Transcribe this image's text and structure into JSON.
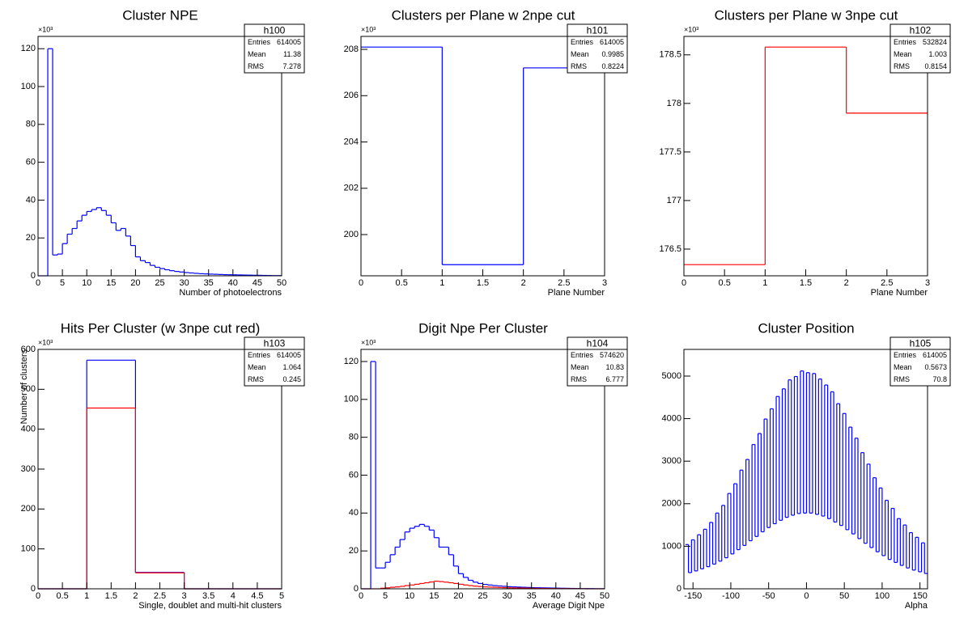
{
  "chart_data": [
    {
      "type": "histogram",
      "title": "Cluster NPE",
      "xlabel": "Number of photoelectrons",
      "y_multiplier": "×10³",
      "bins": [
        0,
        1,
        2,
        3,
        4,
        5,
        6,
        7,
        8,
        9,
        10,
        11,
        12,
        13,
        14,
        15,
        16,
        17,
        18,
        19,
        20,
        21,
        22,
        23,
        24,
        25,
        26,
        27,
        28,
        29,
        30,
        31,
        32,
        33,
        34,
        35,
        36,
        37,
        38,
        39,
        40,
        41,
        42,
        43,
        44,
        45,
        46,
        47,
        48,
        49,
        50
      ],
      "series": [
        {
          "color": "#0000ff",
          "values": [
            0,
            0,
            120,
            11,
            11.5,
            17,
            22,
            25,
            29,
            32,
            34,
            35,
            36,
            34.5,
            32,
            28,
            24,
            25,
            21,
            16,
            10,
            8,
            7,
            5.5,
            4.5,
            3.8,
            3.2,
            2.7,
            2.3,
            2,
            1.7,
            1.5,
            1.3,
            1.1,
            1,
            0.9,
            0.8,
            0.7,
            0.6,
            0.55,
            0.5,
            0.45,
            0.4,
            0.35,
            0.3,
            0.25,
            0.2,
            0.15,
            0.1,
            0.1
          ]
        }
      ],
      "xlim": [
        0,
        50
      ],
      "ylim": [
        0,
        126.5
      ],
      "xticks": [
        0,
        5,
        10,
        15,
        20,
        25,
        30,
        35,
        40,
        45,
        50
      ],
      "yticks": [
        0,
        20,
        40,
        60,
        80,
        100,
        120
      ],
      "stats": {
        "name": "h100",
        "rows": [
          {
            "label": "Entries",
            "value": 614005
          },
          {
            "label": "Mean",
            "value": 11.38
          },
          {
            "label": "RMS",
            "value": 7.278
          }
        ]
      }
    },
    {
      "type": "histogram",
      "title": "Clusters per Plane w 2npe cut",
      "xlabel": "Plane Number",
      "y_multiplier": "×10³",
      "bins": [
        0,
        1,
        2,
        3
      ],
      "series": [
        {
          "color": "#0000ff",
          "values": [
            208.1,
            198.7,
            207.2
          ]
        }
      ],
      "xlim": [
        0,
        3
      ],
      "ylim": [
        198.22,
        208.56
      ],
      "xticks": [
        0,
        0.5,
        1,
        1.5,
        2,
        2.5,
        3
      ],
      "yticks": [
        200,
        202,
        204,
        206,
        208
      ],
      "stats": {
        "name": "h101",
        "rows": [
          {
            "label": "Entries",
            "value": 614005
          },
          {
            "label": "Mean",
            "value": 0.9985
          },
          {
            "label": "RMS",
            "value": 0.8224
          }
        ]
      }
    },
    {
      "type": "histogram",
      "title": "Clusters per Plane w 3npe cut",
      "xlabel": "Plane Number",
      "y_multiplier": "×10³",
      "bins": [
        0,
        1,
        2,
        3
      ],
      "series": [
        {
          "color": "#ff0000",
          "values": [
            176.34,
            178.58,
            177.9
          ]
        }
      ],
      "xlim": [
        0,
        3
      ],
      "ylim": [
        176.225,
        178.69
      ],
      "xticks": [
        0,
        0.5,
        1,
        1.5,
        2,
        2.5,
        3
      ],
      "yticks": [
        176.5,
        177,
        177.5,
        178,
        178.5
      ],
      "stats": {
        "name": "h102",
        "rows": [
          {
            "label": "Entries",
            "value": 532824
          },
          {
            "label": "Mean",
            "value": 1.003
          },
          {
            "label": "RMS",
            "value": 0.8154
          }
        ]
      }
    },
    {
      "type": "histogram",
      "title": "Hits Per Cluster (w 3npe cut red)",
      "xlabel": "Single, doublet and multi-hit clusters",
      "ylabel": "Number of clusters",
      "y_multiplier": "×10³",
      "bins": [
        0,
        1,
        2,
        3,
        4,
        5
      ],
      "series": [
        {
          "color": "#0000ff",
          "values": [
            0,
            573,
            41,
            0,
            0
          ]
        },
        {
          "color": "#ff0000",
          "values": [
            0,
            453,
            40,
            0,
            0
          ]
        }
      ],
      "xlim": [
        0,
        5
      ],
      "ylim": [
        0,
        600
      ],
      "xticks": [
        0,
        0.5,
        1,
        1.5,
        2,
        2.5,
        3,
        3.5,
        4,
        4.5,
        5
      ],
      "yticks": [
        0,
        100,
        200,
        300,
        400,
        500,
        600
      ],
      "stats": {
        "name": "h103",
        "rows": [
          {
            "label": "Entries",
            "value": 614005
          },
          {
            "label": "Mean",
            "value": 1.064
          },
          {
            "label": "RMS",
            "value": 0.245
          }
        ]
      }
    },
    {
      "type": "histogram",
      "title": "Digit Npe Per Cluster",
      "xlabel": "Average Digit Npe",
      "y_multiplier": "×10³",
      "bins": [
        0,
        1,
        2,
        3,
        4,
        5,
        6,
        7,
        8,
        9,
        10,
        11,
        12,
        13,
        14,
        15,
        16,
        17,
        18,
        19,
        20,
        21,
        22,
        23,
        24,
        25,
        26,
        27,
        28,
        29,
        30,
        31,
        32,
        33,
        34,
        35,
        36,
        37,
        38,
        39,
        40,
        41,
        42,
        43,
        44,
        45,
        46,
        47,
        48,
        49,
        50
      ],
      "series": [
        {
          "color": "#0000ff",
          "values": [
            0,
            0,
            120,
            11,
            11,
            14,
            18,
            22,
            26,
            30,
            32,
            33,
            34,
            33,
            31,
            27,
            22,
            22,
            18,
            12,
            8,
            6,
            4.5,
            3.5,
            2.8,
            2.3,
            2,
            1.7,
            1.5,
            1.3,
            1.1,
            1,
            0.9,
            0.8,
            0.7,
            0.6,
            0.55,
            0.5,
            0.45,
            0.4,
            0.35,
            0.3,
            0.25,
            0.2,
            0.15,
            0.1,
            0.1,
            0.1,
            0.05,
            0.05
          ]
        },
        {
          "color": "#ff0000",
          "values": [
            0,
            0,
            0,
            0,
            0.3,
            0.5,
            0.8,
            1,
            1.3,
            1.7,
            2,
            2.4,
            2.8,
            3.2,
            3.6,
            4,
            3.8,
            3.5,
            3.2,
            2.8,
            2.4,
            2,
            1.7,
            1.4,
            1.2,
            1,
            0.9,
            0.8,
            0.7,
            0.6,
            0.5,
            0.45,
            0.4,
            0.35,
            0.3,
            0.25,
            0.2,
            0.2,
            0.15,
            0.15,
            0.1,
            0.1,
            0.1,
            0.05,
            0.05,
            0.05,
            0,
            0,
            0,
            0
          ]
        }
      ],
      "xlim": [
        0,
        50
      ],
      "ylim": [
        0,
        126.4
      ],
      "xticks": [
        0,
        5,
        10,
        15,
        20,
        25,
        30,
        35,
        40,
        45,
        50
      ],
      "yticks": [
        0,
        20,
        40,
        60,
        80,
        100,
        120
      ],
      "stats": {
        "name": "h104",
        "rows": [
          {
            "label": "Entries",
            "value": 574620
          },
          {
            "label": "Mean",
            "value": 10.83
          },
          {
            "label": "RMS",
            "value": 6.777
          }
        ]
      }
    },
    {
      "type": "histogram",
      "title": "Cluster Position",
      "xlabel": "Alpha",
      "bins": [
        -160,
        -156,
        -152,
        -148,
        -144,
        -140,
        -136,
        -132,
        -128,
        -124,
        -120,
        -116,
        -112,
        -108,
        -104,
        -100,
        -96,
        -92,
        -88,
        -84,
        -80,
        -76,
        -72,
        -68,
        -64,
        -60,
        -56,
        -52,
        -48,
        -44,
        -40,
        -36,
        -32,
        -28,
        -24,
        -20,
        -16,
        -12,
        -8,
        -4,
        0,
        4,
        8,
        12,
        16,
        20,
        24,
        28,
        32,
        36,
        40,
        44,
        48,
        52,
        56,
        60,
        64,
        68,
        72,
        76,
        80,
        84,
        88,
        92,
        96,
        100,
        104,
        108,
        112,
        116,
        120,
        124,
        128,
        132,
        136,
        140,
        144,
        148,
        152,
        156,
        160
      ],
      "series": [
        {
          "color": "#0000ff",
          "values": [
            1040,
            380,
            1150,
            420,
            1270,
            470,
            1400,
            520,
            1560,
            580,
            1780,
            650,
            1960,
            730,
            2240,
            820,
            2470,
            920,
            2790,
            1020,
            3040,
            1130,
            3390,
            1230,
            3650,
            1340,
            3990,
            1440,
            4230,
            1530,
            4520,
            1610,
            4700,
            1680,
            4910,
            1730,
            4990,
            1770,
            5120,
            1780,
            5080,
            1780,
            5060,
            1750,
            4930,
            1710,
            4790,
            1650,
            4630,
            1570,
            4350,
            1490,
            4120,
            1390,
            3800,
            1290,
            3540,
            1180,
            3200,
            1070,
            2930,
            970,
            2610,
            870,
            2370,
            780,
            2080,
            690,
            1890,
            620,
            1650,
            550,
            1500,
            490,
            1320,
            440,
            1210,
            400,
            1080,
            360
          ]
        }
      ],
      "xlim": [
        -162,
        160
      ],
      "ylim": [
        0,
        5627
      ],
      "xticks": [
        -150,
        -100,
        -50,
        0,
        50,
        100,
        150
      ],
      "yticks": [
        0,
        1000,
        2000,
        3000,
        4000,
        5000
      ],
      "stats": {
        "name": "h105",
        "rows": [
          {
            "label": "Entries",
            "value": 614005
          },
          {
            "label": "Mean",
            "value": 0.5673
          },
          {
            "label": "RMS",
            "value": 70.8
          }
        ]
      }
    }
  ]
}
